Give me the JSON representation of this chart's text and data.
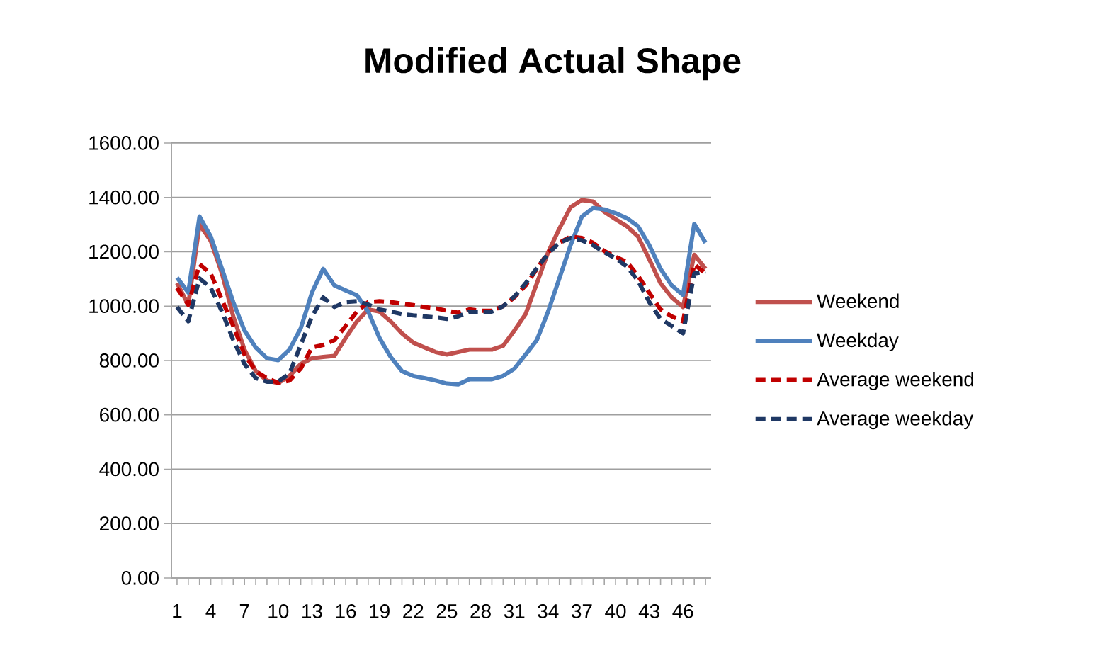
{
  "chart_data": {
    "type": "line",
    "title": "Modified Actual Shape",
    "categories": [
      "1",
      null,
      null,
      "4",
      null,
      null,
      "7",
      null,
      null,
      "10",
      null,
      null,
      "13",
      null,
      null,
      "16",
      null,
      null,
      "19",
      null,
      null,
      "22",
      null,
      null,
      "25",
      null,
      null,
      "28",
      null,
      null,
      "31",
      null,
      null,
      "34",
      null,
      null,
      "37",
      null,
      null,
      "40",
      null,
      null,
      "43",
      null,
      null,
      "46",
      null,
      null
    ],
    "ylim": [
      0,
      1600
    ],
    "yticks": [
      {
        "value": 0,
        "label": "0.00"
      },
      {
        "value": 200,
        "label": "200.00"
      },
      {
        "value": 400,
        "label": "400.00"
      },
      {
        "value": 600,
        "label": "600.00"
      },
      {
        "value": 800,
        "label": "800.00"
      },
      {
        "value": 1000,
        "label": "1000.00"
      },
      {
        "value": 1200,
        "label": "1200.00"
      },
      {
        "value": 1400,
        "label": "1400.00"
      },
      {
        "value": 1600,
        "label": "1600.00"
      }
    ],
    "grid": "y",
    "legend": "right",
    "marker": "none",
    "series": [
      {
        "name": "Weekend",
        "color": "#c0504d",
        "line_style": "solid",
        "values": [
          1085,
          1005,
          1300,
          1240,
          1120,
          962,
          840,
          761,
          726,
          717,
          743,
          787,
          808,
          813,
          817,
          883,
          944,
          988,
          980,
          944,
          900,
          866,
          848,
          831,
          822,
          831,
          840,
          840,
          840,
          854,
          910,
          971,
          1084,
          1198,
          1285,
          1364,
          1390,
          1385,
          1347,
          1320,
          1294,
          1256,
          1172,
          1084,
          1032,
          997,
          1189,
          1137
        ]
      },
      {
        "name": "Weekday",
        "color": "#4f81bd",
        "line_style": "solid",
        "values": [
          1105,
          1050,
          1330,
          1256,
          1137,
          1015,
          910,
          848,
          808,
          801,
          840,
          918,
          1050,
          1137,
          1076,
          1058,
          1040,
          980,
          883,
          813,
          761,
          743,
          735,
          726,
          715,
          712,
          731,
          731,
          731,
          743,
          770,
          822,
          875,
          980,
          1102,
          1224,
          1329,
          1361,
          1356,
          1342,
          1324,
          1294,
          1224,
          1137,
          1076,
          1041,
          1303,
          1233
        ]
      },
      {
        "name": "Average weekend",
        "color": "#c00000",
        "line_style": "dashed",
        "values": [
          1067,
          1005,
          1154,
          1120,
          1023,
          927,
          822,
          761,
          735,
          717,
          726,
          770,
          848,
          857,
          875,
          927,
          980,
          1015,
          1018,
          1015,
          1009,
          1004,
          997,
          992,
          983,
          976,
          988,
          983,
          983,
          1000,
          1032,
          1076,
          1137,
          1198,
          1233,
          1256,
          1251,
          1233,
          1203,
          1181,
          1163,
          1111,
          1049,
          988,
          962,
          944,
          1154,
          1120
        ]
      },
      {
        "name": "Average weekday",
        "color": "#1f3864",
        "line_style": "dashed",
        "values": [
          997,
          944,
          1102,
          1067,
          980,
          875,
          787,
          735,
          722,
          722,
          752,
          857,
          962,
          1032,
          997,
          1015,
          1018,
          1006,
          988,
          980,
          971,
          966,
          962,
          959,
          953,
          962,
          980,
          980,
          980,
          1000,
          1035,
          1084,
          1140,
          1193,
          1233,
          1251,
          1242,
          1224,
          1198,
          1176,
          1146,
          1093,
          1015,
          953,
          927,
          900,
          1120,
          1128
        ]
      }
    ]
  }
}
